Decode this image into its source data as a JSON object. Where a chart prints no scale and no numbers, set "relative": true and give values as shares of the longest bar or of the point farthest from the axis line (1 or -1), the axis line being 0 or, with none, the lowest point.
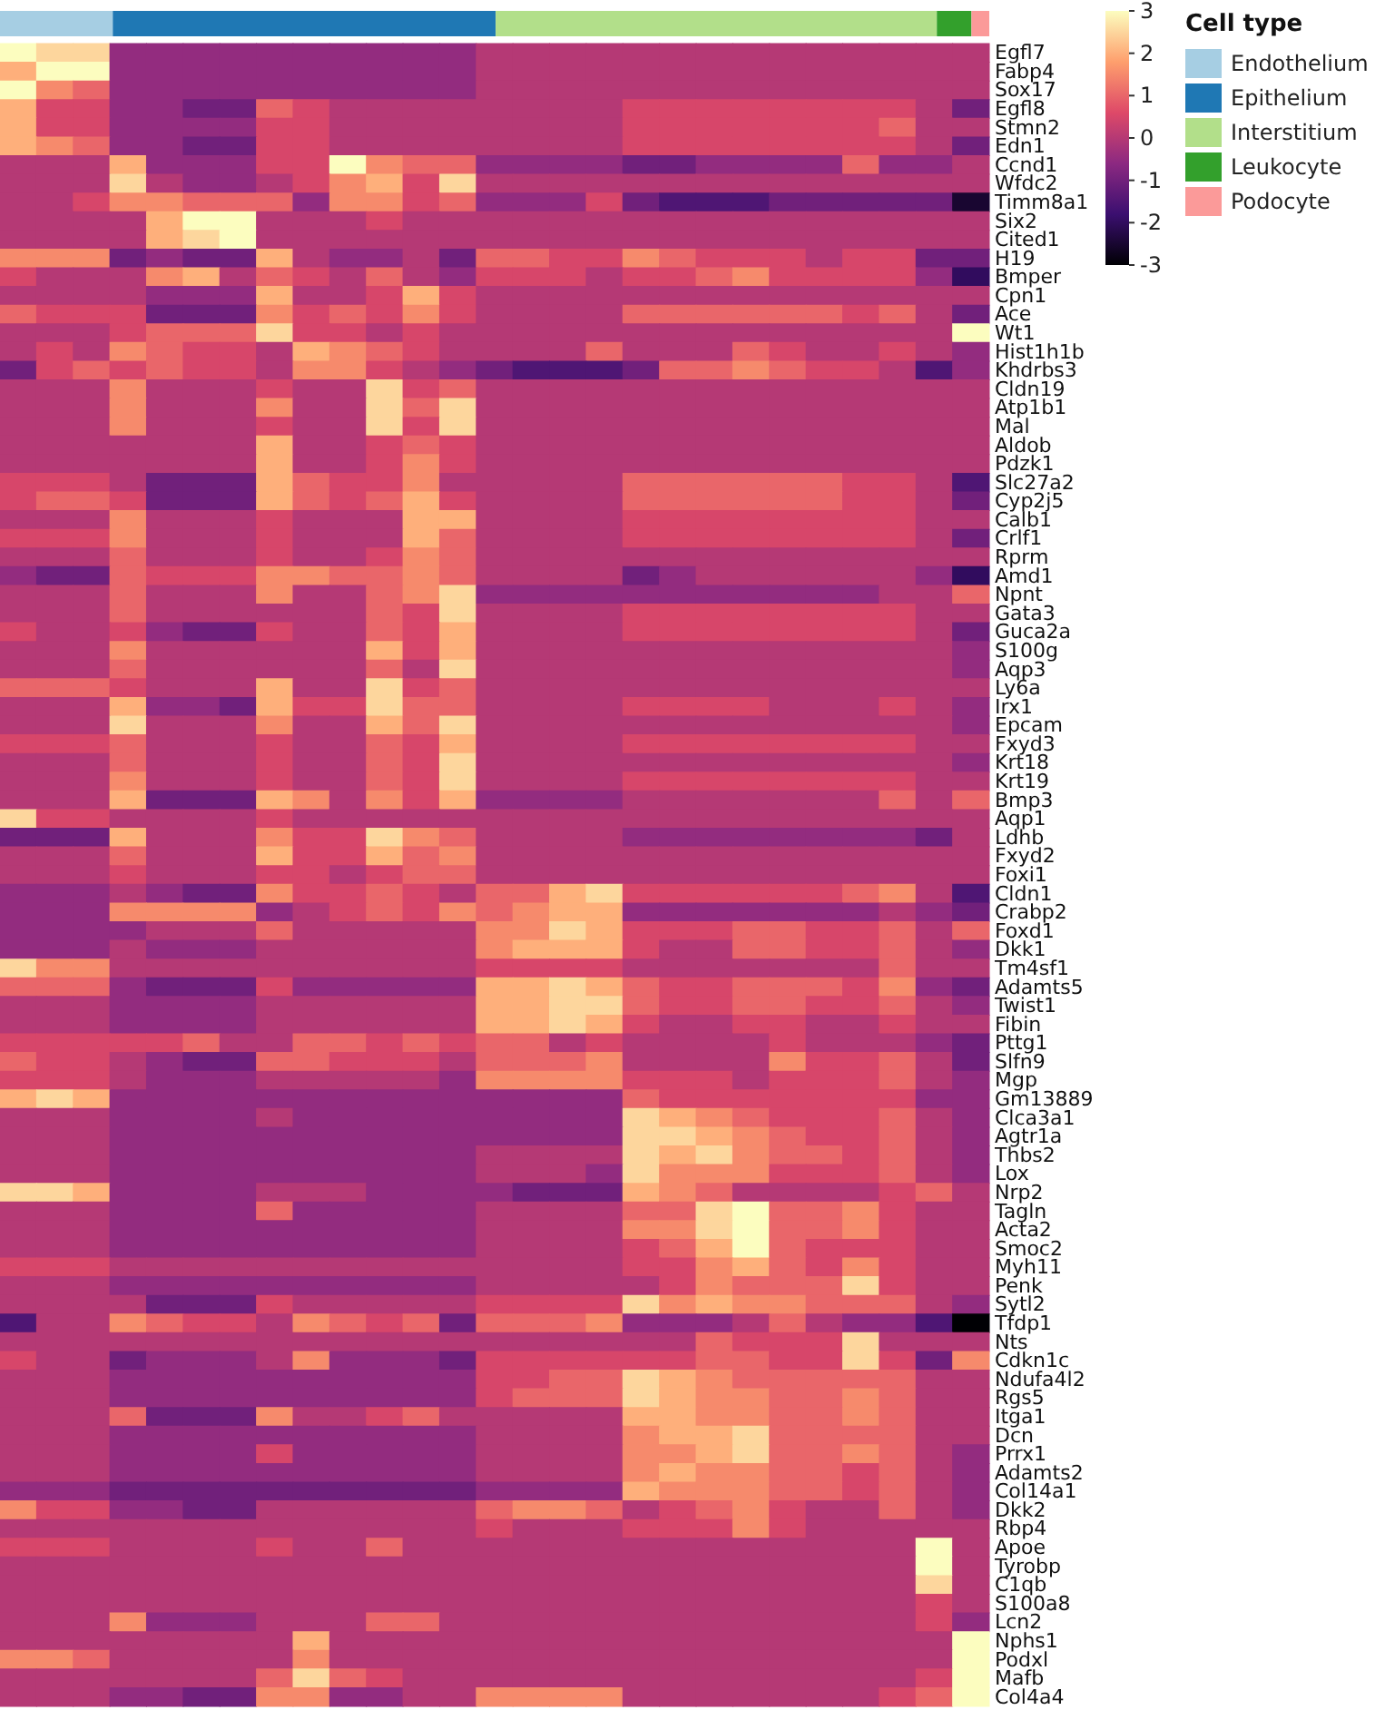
{
  "chart_data": [
    {
      "type": "bar",
      "orientation": "horizontal",
      "stacked": true,
      "relative": true,
      "legend": "bottom right",
      "legend_title": "Cell type",
      "categories": [
        null
      ],
      "series": [
        {
          "name": "Endothelium",
          "color": "#a6cee3",
          "values": [
            0.114
          ]
        },
        {
          "name": "Epithelium",
          "color": "#1f78b4",
          "values": [
            0.387
          ]
        },
        {
          "name": "Interstitium",
          "color": "#b2df8a",
          "values": [
            0.446
          ]
        },
        {
          "name": "Leukocyte",
          "color": "#33a02c",
          "values": [
            0.035
          ]
        },
        {
          "name": "Podocyte",
          "color": "#fb9a99",
          "values": [
            0.018
          ]
        }
      ]
    },
    {
      "type": "heatmap",
      "tick_labels": "y",
      "clim": [
        -3,
        3
      ],
      "cticks": [
        -3,
        -2,
        -1,
        0,
        1,
        2,
        3
      ],
      "categories": [
        null,
        null,
        null,
        null,
        null,
        null,
        null,
        null,
        null,
        null,
        null,
        null,
        null,
        null,
        null,
        null,
        null,
        null,
        null,
        null,
        null,
        null,
        null,
        null,
        null,
        null,
        null
      ],
      "y_categories": [
        "Egfl7",
        "Fabp4",
        "Sox17",
        "Egfl8",
        "Stmn2",
        "Edn1",
        "Ccnd1",
        "Wfdc2",
        "Timm8a1",
        "Six2",
        "Cited1",
        "H19",
        "Bmper",
        "Cpn1",
        "Ace",
        "Wt1",
        "Hist1h1b",
        "Khdrbs3",
        "Cldn19",
        "Atp1b1",
        "Mal",
        "Aldob",
        "Pdzk1",
        "Slc27a2",
        "Cyp2j5",
        "Calb1",
        "Crlf1",
        "Rprm",
        "Amd1",
        "Npnt",
        "Gata3",
        "Guca2a",
        "S100g",
        "Aqp3",
        "Ly6a",
        "Irx1",
        "Epcam",
        "Fxyd3",
        "Krt18",
        "Krt19",
        "Bmp3",
        "Aqp1",
        "Ldhb",
        "Fxyd2",
        "Foxi1",
        "Cldn1",
        "Crabp2",
        "Foxd1",
        "Dkk1",
        "Tm4sf1",
        "Adamts5",
        "Twist1",
        "Fibin",
        "Pttg1",
        "Slfn9",
        "Mgp",
        "Gm13889",
        "Clca3a1",
        "Agtr1a",
        "Thbs2",
        "Lox",
        "Nrp2",
        "Tagln",
        "Acta2",
        "Smoc2",
        "Myh11",
        "Penk",
        "Sytl2",
        "Tfdp1",
        "Nts",
        "Cdkn1c",
        "Ndufa4l2",
        "Rgs5",
        "Itga1",
        "Dcn",
        "Prrx1",
        "Adamts2",
        "Col14a1",
        "Dkk2",
        "Rbp4",
        "Apoe",
        "Tyrobp",
        "C1qb",
        "S100a8",
        "Lcn2",
        "Nphs1",
        "Podxl",
        "Mafb",
        "Col4a4"
      ],
      "cells": [
        [
          3,
          2.5,
          2.5,
          -0.5,
          -0.5,
          -0.5,
          -0.5,
          -0.5,
          -0.5,
          -0.5,
          -0.5,
          -0.5,
          -0.5,
          0,
          0,
          0,
          0,
          0,
          0,
          0,
          0,
          0,
          0,
          0,
          0,
          0,
          0
        ],
        [
          2,
          3,
          3,
          -0.5,
          -0.5,
          -0.5,
          -0.5,
          -0.5,
          -0.5,
          -0.5,
          -0.5,
          -0.5,
          -0.5,
          0,
          0,
          0,
          0,
          0,
          0,
          0,
          0,
          0,
          0,
          0,
          0,
          0,
          0
        ],
        [
          3,
          1.5,
          1,
          -0.5,
          -0.5,
          -0.5,
          -0.5,
          -0.5,
          -0.5,
          -0.5,
          -0.5,
          -0.5,
          -0.5,
          0,
          0,
          0,
          0,
          0,
          0,
          0,
          0,
          0,
          0,
          0,
          0,
          0,
          0
        ],
        [
          2,
          0.5,
          0.5,
          -0.5,
          -0.5,
          -1,
          -1,
          1,
          0.5,
          0,
          0,
          0,
          0,
          0,
          0,
          0,
          0,
          0.5,
          0.5,
          0.5,
          0.5,
          0.5,
          0.5,
          0.5,
          0.5,
          0,
          -1
        ],
        [
          2,
          0.5,
          0.5,
          -0.5,
          -0.5,
          -0.5,
          -0.5,
          0.5,
          0.5,
          0,
          0,
          0,
          0,
          0,
          0,
          0,
          0,
          0.5,
          0.5,
          0.5,
          0.5,
          0.5,
          0.5,
          0.5,
          1,
          0,
          0
        ],
        [
          2,
          1.5,
          1,
          -0.5,
          -0.5,
          -1,
          -1,
          0.5,
          0.5,
          0,
          0,
          0,
          0,
          0,
          0,
          0,
          0,
          0.5,
          0.5,
          0.5,
          0.5,
          0.5,
          0.5,
          0.5,
          0.5,
          0,
          -1
        ],
        [
          0,
          0,
          0,
          2,
          -0.5,
          -0.5,
          -0.5,
          0.5,
          0.5,
          3,
          1.5,
          1,
          1,
          -0.5,
          -0.5,
          -0.5,
          -0.5,
          -1,
          -1,
          -0.5,
          -0.5,
          -0.5,
          -0.5,
          1,
          -0.5,
          -0.5,
          0
        ],
        [
          0,
          0,
          0,
          2.5,
          0,
          -0.5,
          -0.5,
          0,
          0.5,
          1.5,
          2,
          0.5,
          2.5,
          0,
          0,
          0,
          0,
          0,
          0,
          0,
          0,
          0,
          0,
          0,
          0,
          0,
          0
        ],
        [
          0,
          0,
          0.5,
          1.5,
          1.5,
          1,
          1,
          1,
          -0.5,
          1.5,
          1.5,
          0.5,
          1,
          -0.5,
          -0.5,
          -0.5,
          0.5,
          -1,
          -1.5,
          -1.5,
          -1.5,
          -1,
          -1,
          -1,
          -1,
          -1,
          -2.5
        ],
        [
          0,
          0,
          0,
          0,
          2,
          3,
          3,
          0,
          0,
          0,
          0.5,
          0,
          0,
          0,
          0,
          0,
          0,
          0,
          0,
          0,
          0,
          0,
          0,
          0,
          0,
          0,
          0
        ],
        [
          0,
          0,
          0,
          0,
          2,
          2.5,
          3,
          0,
          0,
          0,
          0,
          0,
          0,
          0,
          0,
          0,
          0,
          0,
          0,
          0,
          0,
          0,
          0,
          0,
          0,
          0,
          0
        ],
        [
          1.5,
          1.5,
          1.5,
          -1,
          -0.5,
          -1,
          -1,
          2,
          0,
          -0.5,
          -0.5,
          0,
          -1,
          1,
          1,
          0.5,
          0.5,
          1.5,
          1,
          0.5,
          0.5,
          0.5,
          0,
          0.5,
          0.5,
          -1,
          -1
        ],
        [
          0.5,
          0,
          0,
          0,
          1.5,
          2,
          0,
          1,
          0.5,
          0,
          1,
          0,
          -0.5,
          0.5,
          0.5,
          0.5,
          0,
          0.5,
          0.5,
          1,
          1.5,
          0.5,
          0.5,
          0.5,
          0.5,
          -0.5,
          -2
        ],
        [
          0,
          0,
          0,
          0,
          -0.5,
          -0.5,
          -0.5,
          2,
          0,
          0,
          0.5,
          2,
          0.5,
          0,
          0,
          0,
          0,
          0,
          0,
          0,
          0,
          0,
          0,
          0,
          0,
          0,
          0
        ],
        [
          1,
          0.5,
          0.5,
          0.5,
          -1,
          -1,
          -1,
          1.5,
          0.5,
          1,
          0.5,
          1.5,
          0.5,
          0,
          0,
          0,
          0,
          1,
          1,
          1,
          1,
          1,
          1,
          0.5,
          1,
          0,
          -1
        ],
        [
          0,
          0,
          0,
          0.5,
          1,
          1,
          1,
          2.5,
          0.5,
          0.5,
          0,
          0.5,
          0,
          0,
          0,
          0,
          0,
          0,
          0,
          0,
          0,
          0,
          0,
          0,
          0,
          0,
          3
        ],
        [
          0,
          0.5,
          0,
          1.5,
          1,
          0.5,
          0.5,
          0,
          2,
          1.5,
          1,
          0.5,
          0,
          0,
          0,
          0,
          1,
          0,
          0,
          0,
          1,
          0.5,
          0,
          0,
          0.5,
          0,
          -0.5
        ],
        [
          -1,
          0.5,
          1,
          0.5,
          1,
          0.5,
          0.5,
          0,
          1.5,
          1.5,
          0.5,
          0,
          -0.5,
          -1,
          -1.5,
          -1.5,
          -1.5,
          -1,
          1,
          1,
          1.5,
          1,
          0.5,
          0.5,
          0,
          -1.5,
          -0.5
        ],
        [
          0,
          0,
          0,
          1.5,
          0,
          0,
          0,
          0.5,
          0,
          0,
          2.5,
          0.5,
          1,
          0,
          0,
          0,
          0,
          0,
          0,
          0,
          0,
          0,
          0,
          0,
          0,
          0,
          0
        ],
        [
          0,
          0,
          0,
          1.5,
          0,
          0,
          0,
          1.5,
          0,
          0,
          2.5,
          1,
          2.5,
          0,
          0,
          0,
          0,
          0,
          0,
          0,
          0,
          0,
          0,
          0,
          0,
          0,
          0
        ],
        [
          0,
          0,
          0,
          1.5,
          0,
          0,
          0,
          0.5,
          0,
          0,
          2.5,
          0.5,
          2.5,
          0,
          0,
          0,
          0,
          0,
          0,
          0,
          0,
          0,
          0,
          0,
          0,
          0,
          0
        ],
        [
          0,
          0,
          0,
          0,
          0,
          0,
          0,
          2,
          0,
          0,
          0.5,
          1,
          0.5,
          0,
          0,
          0,
          0,
          0,
          0,
          0,
          0,
          0,
          0,
          0,
          0,
          0,
          0
        ],
        [
          0,
          0,
          0,
          0,
          0,
          0,
          0,
          2,
          0,
          0,
          0.5,
          1.5,
          0.5,
          0,
          0,
          0,
          0,
          0,
          0,
          0,
          0,
          0,
          0,
          0,
          0,
          0,
          0
        ],
        [
          0.5,
          0.5,
          0.5,
          0,
          -1,
          -1,
          -1,
          2,
          1,
          0.5,
          0.5,
          1.5,
          0,
          0,
          0,
          0,
          0,
          1,
          1,
          1,
          1,
          1,
          1,
          0.5,
          0.5,
          0,
          -1.5
        ],
        [
          0.5,
          1,
          1,
          0.5,
          -1,
          -1,
          -1,
          2,
          1,
          0.5,
          1,
          2,
          0.5,
          0,
          0,
          0,
          0,
          1,
          1,
          1,
          1,
          1,
          1,
          0.5,
          0.5,
          0,
          -1
        ],
        [
          0,
          0,
          0,
          1.5,
          0,
          0,
          0,
          0.5,
          0,
          0,
          0,
          2,
          2,
          0,
          0,
          0,
          0,
          0.5,
          0.5,
          0.5,
          0.5,
          0.5,
          0.5,
          0.5,
          0.5,
          0,
          0
        ],
        [
          0.5,
          0.5,
          0.5,
          1.5,
          0,
          0,
          0,
          0.5,
          0,
          0,
          0,
          2,
          1,
          0,
          0,
          0,
          0,
          0.5,
          0.5,
          0.5,
          0.5,
          0.5,
          0.5,
          0.5,
          0.5,
          0,
          -1
        ],
        [
          0,
          0,
          0,
          1,
          0,
          0,
          0,
          0.5,
          0,
          0,
          0.5,
          1.5,
          1,
          0,
          0,
          0,
          0,
          0,
          0,
          0,
          0,
          0,
          0,
          0,
          0,
          0,
          0
        ],
        [
          -0.5,
          -1,
          -1,
          1,
          0.5,
          0.5,
          0.5,
          1.5,
          1.5,
          1,
          1,
          1.5,
          1,
          0,
          0,
          0,
          0,
          -1,
          -0.5,
          0,
          0,
          0,
          0,
          0,
          0,
          -0.5,
          -2
        ],
        [
          0,
          0,
          0,
          1,
          0,
          0,
          0,
          1.5,
          0,
          0,
          1,
          1.5,
          2.5,
          -0.5,
          -0.5,
          -0.5,
          -0.5,
          -0.5,
          -0.5,
          -0.5,
          -0.5,
          -0.5,
          -0.5,
          -0.5,
          0,
          0,
          1
        ],
        [
          0,
          0,
          0,
          1,
          0,
          0,
          0,
          0,
          0,
          0,
          1,
          0.5,
          2.5,
          0,
          0,
          0,
          0,
          0.5,
          0.5,
          0.5,
          0.5,
          0.5,
          0.5,
          0.5,
          0.5,
          0,
          0
        ],
        [
          0.5,
          0,
          0,
          0.5,
          -0.5,
          -1,
          -1,
          0.5,
          0,
          0,
          1,
          0.5,
          2,
          0,
          0,
          0,
          0,
          0.5,
          0.5,
          0.5,
          0.5,
          0.5,
          0.5,
          0.5,
          0.5,
          0,
          -1
        ],
        [
          0,
          0,
          0,
          1.5,
          0,
          0,
          0,
          0,
          0,
          0,
          2,
          0.5,
          2,
          0,
          0,
          0,
          0,
          0,
          0,
          0,
          0,
          0,
          0,
          0,
          0,
          0,
          -0.5
        ],
        [
          0,
          0,
          0,
          1,
          0,
          0,
          0,
          0,
          0,
          0,
          1,
          0,
          2.5,
          0,
          0,
          0,
          0,
          0,
          0,
          0,
          0,
          0,
          0,
          0,
          0,
          0,
          -0.5
        ],
        [
          1,
          1,
          1,
          0.5,
          0,
          0,
          0,
          2,
          0,
          0,
          2.5,
          0.5,
          1,
          0,
          0,
          0,
          0,
          0,
          0,
          0,
          0,
          0,
          0,
          0,
          0,
          0,
          0
        ],
        [
          0,
          0,
          0,
          2,
          -0.5,
          -0.5,
          -1,
          2,
          0.5,
          0.5,
          2.5,
          1,
          1,
          0,
          0,
          0,
          0,
          0.5,
          0.5,
          0.5,
          0.5,
          0,
          0,
          0,
          0.5,
          0,
          -0.5
        ],
        [
          0,
          0,
          0,
          2.5,
          0,
          0,
          0,
          1.5,
          0,
          0,
          2,
          1,
          2.5,
          0,
          0,
          0,
          0,
          0,
          0,
          0,
          0,
          0,
          0,
          0,
          0,
          0,
          -0.5
        ],
        [
          0.5,
          0.5,
          0.5,
          1,
          0,
          0,
          0,
          0.5,
          0,
          0,
          1,
          0.5,
          2,
          0,
          0,
          0,
          0,
          0.5,
          0.5,
          0.5,
          0.5,
          0.5,
          0.5,
          0.5,
          0.5,
          0,
          0
        ],
        [
          0,
          0,
          0,
          1,
          0,
          0,
          0,
          0.5,
          0,
          0,
          1,
          0.5,
          2.5,
          0,
          0,
          0,
          0,
          0,
          0,
          0,
          0,
          0,
          0,
          0,
          0,
          0,
          -0.5
        ],
        [
          0,
          0,
          0,
          1.5,
          0,
          0,
          0,
          0.5,
          0,
          0,
          1,
          0.5,
          2.5,
          0,
          0,
          0,
          0,
          0.5,
          0.5,
          0.5,
          0.5,
          0.5,
          0.5,
          0.5,
          0.5,
          0,
          0
        ],
        [
          0,
          0,
          0,
          2,
          -1,
          -1,
          -1,
          2,
          1.5,
          0,
          1.5,
          0.5,
          2,
          -0.5,
          -0.5,
          -0.5,
          -0.5,
          0,
          0,
          0,
          0,
          0,
          0,
          0,
          1,
          0,
          1
        ],
        [
          2.5,
          0.5,
          0.5,
          0,
          0,
          0,
          0,
          0.5,
          0,
          0,
          0,
          0,
          0,
          0,
          0,
          0,
          0,
          0,
          0,
          0,
          0,
          0,
          0,
          0,
          0,
          0,
          0
        ],
        [
          -1,
          -1,
          -1,
          2,
          0,
          0,
          0,
          1.5,
          0.5,
          0.5,
          2.5,
          1.5,
          1,
          0,
          0,
          0,
          0,
          -0.5,
          -0.5,
          -0.5,
          -0.5,
          -0.5,
          -0.5,
          -0.5,
          -0.5,
          -1,
          0
        ],
        [
          0,
          0,
          0,
          1,
          0,
          0,
          0,
          2,
          0.5,
          0.5,
          2,
          1,
          1.5,
          0,
          0,
          0,
          0,
          0,
          0,
          0,
          0,
          0,
          0,
          0,
          0,
          0,
          0
        ],
        [
          0,
          0,
          0,
          0.5,
          0,
          0,
          0,
          0.5,
          0.5,
          0,
          0.5,
          1,
          1,
          0,
          0,
          0,
          0,
          0,
          0,
          0,
          0,
          0,
          0,
          0,
          0,
          0,
          0
        ],
        [
          -0.5,
          -0.5,
          -0.5,
          0,
          -0.5,
          -1,
          -1,
          1.5,
          0.5,
          0.5,
          1,
          0.5,
          0,
          1,
          1,
          2,
          2.5,
          0.5,
          0.5,
          0.5,
          0.5,
          0.5,
          0.5,
          1,
          1.5,
          0,
          -1.5
        ],
        [
          -0.5,
          -0.5,
          -0.5,
          1.5,
          1.5,
          1.5,
          1.5,
          -0.5,
          0,
          0.5,
          1,
          0.5,
          1.5,
          1,
          1.5,
          2,
          2,
          -0.5,
          -0.5,
          -0.5,
          -0.5,
          -0.5,
          -0.5,
          -0.5,
          0,
          -0.5,
          -1
        ],
        [
          -0.5,
          -0.5,
          -0.5,
          -0.5,
          0,
          0,
          0,
          1,
          0,
          0,
          0,
          0,
          0,
          1.5,
          1.5,
          2.5,
          2,
          0.5,
          0.5,
          0.5,
          1,
          1,
          0.5,
          0.5,
          1,
          0,
          1
        ],
        [
          -0.5,
          -0.5,
          -0.5,
          0,
          -0.5,
          -0.5,
          -0.5,
          0,
          0,
          0,
          0,
          0,
          0,
          1.5,
          2,
          2,
          2,
          0.5,
          0,
          0,
          1,
          1,
          0.5,
          0.5,
          1,
          0,
          -0.5
        ],
        [
          2.5,
          1.5,
          1.5,
          0,
          0,
          0,
          0,
          0,
          0,
          0,
          0,
          0,
          0,
          0.5,
          0.5,
          0.5,
          0.5,
          0,
          0,
          0,
          0,
          0,
          0,
          0,
          1,
          0,
          0
        ],
        [
          1,
          1,
          1,
          -0.5,
          -1,
          -1,
          -1,
          0.5,
          -0.5,
          -0.5,
          -0.5,
          -0.5,
          -0.5,
          2,
          2,
          2.5,
          2,
          1,
          0.5,
          0.5,
          1,
          1,
          1,
          0.5,
          1.5,
          -0.5,
          -1
        ],
        [
          0,
          0,
          0,
          -0.5,
          -0.5,
          -0.5,
          -0.5,
          0,
          0,
          0,
          0,
          0,
          0,
          2,
          2,
          2.5,
          2.5,
          1,
          0.5,
          0.5,
          1,
          1,
          0.5,
          0.5,
          1,
          0,
          -0.5
        ],
        [
          0,
          0,
          0,
          -0.5,
          -0.5,
          -0.5,
          -0.5,
          0,
          0,
          0,
          0,
          0,
          0,
          2,
          2,
          2.5,
          2,
          0.5,
          0,
          0,
          0.5,
          0.5,
          0,
          0,
          0.5,
          0,
          0
        ],
        [
          0.5,
          0.5,
          0.5,
          0.5,
          0.5,
          1,
          0,
          0,
          1,
          1,
          0.5,
          1,
          0.5,
          1,
          1,
          0,
          0.5,
          0,
          0,
          0,
          0,
          0.5,
          0,
          0,
          0,
          -0.5,
          -1
        ],
        [
          1,
          0.5,
          0.5,
          0,
          -0.5,
          -1,
          -1,
          1,
          1,
          0.5,
          0.5,
          0.5,
          0,
          1,
          1,
          1,
          1.5,
          0,
          0,
          0,
          0,
          1.5,
          0.5,
          0.5,
          1,
          0,
          -1
        ],
        [
          0.5,
          0.5,
          0.5,
          0,
          -0.5,
          -0.5,
          -0.5,
          0,
          0,
          0,
          0,
          0,
          -0.5,
          1.5,
          1.5,
          1.5,
          1.5,
          0.5,
          0.5,
          0.5,
          0,
          0.5,
          0.5,
          0.5,
          1,
          0,
          -0.5
        ],
        [
          2,
          2.5,
          2,
          -0.5,
          -0.5,
          -0.5,
          -0.5,
          -0.5,
          -0.5,
          -0.5,
          -0.5,
          -0.5,
          -0.5,
          -0.5,
          -0.5,
          -0.5,
          -0.5,
          1,
          0.5,
          0.5,
          0.5,
          0.5,
          0.5,
          0.5,
          0.5,
          -0.5,
          -0.5
        ],
        [
          0,
          0,
          0,
          -0.5,
          -0.5,
          -0.5,
          -0.5,
          0,
          -0.5,
          -0.5,
          -0.5,
          -0.5,
          -0.5,
          -0.5,
          -0.5,
          -0.5,
          -0.5,
          2.5,
          2,
          1.5,
          1,
          0.5,
          0.5,
          0.5,
          1,
          0,
          -0.5
        ],
        [
          0,
          0,
          0,
          -0.5,
          -0.5,
          -0.5,
          -0.5,
          -0.5,
          -0.5,
          -0.5,
          -0.5,
          -0.5,
          -0.5,
          -0.5,
          -0.5,
          -0.5,
          -0.5,
          2.5,
          2.5,
          2,
          1.5,
          1,
          0.5,
          0.5,
          1,
          0,
          -0.5
        ],
        [
          0,
          0,
          0,
          -0.5,
          -0.5,
          -0.5,
          -0.5,
          -0.5,
          -0.5,
          -0.5,
          -0.5,
          -0.5,
          -0.5,
          0,
          0,
          0,
          0,
          2.5,
          2,
          2.5,
          1.5,
          1,
          1,
          0.5,
          1,
          0,
          -0.5
        ],
        [
          0,
          0,
          0,
          -0.5,
          -0.5,
          -0.5,
          -0.5,
          -0.5,
          -0.5,
          -0.5,
          -0.5,
          -0.5,
          -0.5,
          0,
          0,
          0,
          -0.5,
          2.5,
          1.5,
          1.5,
          1.5,
          0.5,
          0.5,
          0.5,
          1,
          0,
          -0.5
        ],
        [
          2.5,
          2.5,
          2,
          -0.5,
          -0.5,
          -0.5,
          -0.5,
          0,
          0,
          0,
          -0.5,
          -0.5,
          -0.5,
          -0.5,
          -1,
          -1,
          -1,
          2,
          1.5,
          1,
          0,
          0,
          0,
          0,
          0.5,
          1,
          0
        ],
        [
          0,
          0,
          0,
          -0.5,
          -0.5,
          -0.5,
          -0.5,
          1,
          -0.5,
          -0.5,
          -0.5,
          -0.5,
          -0.5,
          0,
          0,
          0,
          0,
          1,
          1,
          2.5,
          3,
          1,
          1,
          1.5,
          0.5,
          0,
          0
        ],
        [
          0,
          0,
          0,
          -0.5,
          -0.5,
          -0.5,
          -0.5,
          -0.5,
          -0.5,
          -0.5,
          -0.5,
          -0.5,
          -0.5,
          0,
          0,
          0,
          0,
          1.5,
          1.5,
          2.5,
          3,
          1,
          1,
          1.5,
          0.5,
          0,
          0
        ],
        [
          0,
          0,
          0,
          -0.5,
          -0.5,
          -0.5,
          -0.5,
          -0.5,
          -0.5,
          -0.5,
          -0.5,
          -0.5,
          -0.5,
          0,
          0,
          0,
          0,
          0.5,
          1,
          2,
          3,
          1,
          0.5,
          0.5,
          0.5,
          0,
          0
        ],
        [
          0.5,
          0.5,
          0.5,
          0,
          0,
          0,
          0,
          0,
          0,
          0,
          0,
          0,
          0,
          0,
          0,
          0,
          0,
          0.5,
          0.5,
          1.5,
          2,
          1,
          0.5,
          1.5,
          0.5,
          0,
          0
        ],
        [
          0,
          0,
          0,
          -0.5,
          -0.5,
          -0.5,
          -0.5,
          -0.5,
          -0.5,
          -0.5,
          -0.5,
          -0.5,
          -0.5,
          0,
          0,
          0,
          0,
          0,
          0.5,
          1.5,
          1,
          1,
          1,
          2.5,
          0.5,
          0,
          0
        ],
        [
          0,
          0,
          0,
          0,
          -1,
          -1,
          -1,
          0.5,
          0,
          0,
          0,
          0,
          0,
          0.5,
          0.5,
          0.5,
          0.5,
          2.5,
          1.5,
          2,
          1.5,
          1.5,
          1,
          1,
          1,
          0,
          -0.5
        ],
        [
          -1.5,
          0,
          0,
          1.5,
          1,
          0.5,
          0.5,
          0,
          1.5,
          1,
          0.5,
          1,
          -1,
          1,
          1,
          1,
          1.5,
          -0.5,
          -0.5,
          -0.5,
          0,
          1,
          0,
          -0.5,
          -0.5,
          -1.5,
          -3
        ],
        [
          0,
          0,
          0,
          0,
          0,
          0,
          0,
          0,
          0,
          0,
          0,
          0,
          0,
          0,
          0,
          0,
          0,
          0,
          0,
          1,
          0.5,
          0.5,
          0.5,
          2.5,
          0,
          0,
          0
        ],
        [
          0.5,
          0,
          0,
          -1,
          -0.5,
          -0.5,
          -0.5,
          0,
          1.5,
          -0.5,
          -0.5,
          -0.5,
          -1,
          0.5,
          0.5,
          0.5,
          0.5,
          0.5,
          0.5,
          1,
          1,
          0.5,
          0.5,
          2.5,
          0.5,
          -1,
          1.5
        ],
        [
          0,
          0,
          0,
          -0.5,
          -0.5,
          -0.5,
          -0.5,
          -0.5,
          -0.5,
          -0.5,
          -0.5,
          -0.5,
          -0.5,
          0.5,
          0.5,
          1,
          1,
          2.5,
          2,
          1.5,
          1,
          1,
          1,
          1,
          1,
          0,
          0
        ],
        [
          0,
          0,
          0,
          -0.5,
          -0.5,
          -0.5,
          -0.5,
          -0.5,
          -0.5,
          -0.5,
          -0.5,
          -0.5,
          -0.5,
          0.5,
          1,
          1,
          1,
          2.5,
          2,
          1.5,
          1.5,
          1,
          1,
          1.5,
          1,
          0,
          0
        ],
        [
          0,
          0,
          0,
          1,
          -1,
          -1,
          -1,
          1.5,
          0,
          0,
          0.5,
          1,
          0,
          0,
          0,
          0,
          0,
          2,
          2,
          1.5,
          1.5,
          1,
          1,
          1.5,
          1,
          0,
          0
        ],
        [
          0,
          0,
          0,
          -0.5,
          -0.5,
          -0.5,
          -0.5,
          -0.5,
          -0.5,
          -0.5,
          -0.5,
          -0.5,
          -0.5,
          0,
          0,
          0,
          0,
          1.5,
          2,
          2,
          2.5,
          1,
          1,
          1,
          1,
          0,
          0
        ],
        [
          0,
          0,
          0,
          -0.5,
          -0.5,
          -0.5,
          -0.5,
          0.5,
          -0.5,
          -0.5,
          -0.5,
          -0.5,
          -0.5,
          0,
          0,
          0,
          0,
          1.5,
          1.5,
          2,
          2.5,
          1,
          1,
          1.5,
          1,
          0,
          -0.5
        ],
        [
          0,
          0,
          0,
          -0.5,
          -0.5,
          -0.5,
          -0.5,
          -0.5,
          -0.5,
          -0.5,
          -0.5,
          -0.5,
          -0.5,
          0,
          0,
          0,
          0,
          1.5,
          2,
          1.5,
          1.5,
          1,
          1,
          0.5,
          1,
          0,
          -0.5
        ],
        [
          -0.5,
          -0.5,
          -0.5,
          -1,
          -1,
          -1,
          -1,
          -1,
          -1,
          -1,
          -1,
          -1,
          -1,
          -0.5,
          -0.5,
          -0.5,
          -0.5,
          2,
          1.5,
          1.5,
          1.5,
          1,
          1,
          0.5,
          1,
          0,
          -0.5
        ],
        [
          1.5,
          0.5,
          0.5,
          -0.5,
          -0.5,
          -1,
          -1,
          0,
          0,
          0,
          0,
          0,
          0,
          1,
          1.5,
          1.5,
          1,
          0,
          0.5,
          1,
          1.5,
          0.5,
          0,
          0,
          1,
          0,
          -0.5
        ],
        [
          0,
          0,
          0,
          0,
          0,
          0,
          0,
          0,
          0,
          0,
          0,
          0,
          0,
          0.5,
          0,
          0,
          0,
          0.5,
          0.5,
          0.5,
          1.5,
          0.5,
          0,
          0,
          0,
          0,
          0
        ],
        [
          0.5,
          0.5,
          0.5,
          0,
          0,
          0,
          0,
          0.5,
          0,
          0,
          1,
          0,
          0,
          0,
          0,
          0,
          0,
          0,
          0,
          0,
          0,
          0,
          0,
          0,
          0,
          3,
          0
        ],
        [
          0,
          0,
          0,
          0,
          0,
          0,
          0,
          0,
          0,
          0,
          0,
          0,
          0,
          0,
          0,
          0,
          0,
          0,
          0,
          0,
          0,
          0,
          0,
          0,
          0,
          3,
          0
        ],
        [
          0,
          0,
          0,
          0,
          0,
          0,
          0,
          0,
          0,
          0,
          0,
          0,
          0,
          0,
          0,
          0,
          0,
          0,
          0,
          0,
          0,
          0,
          0,
          0,
          0,
          2.5,
          0
        ],
        [
          0,
          0,
          0,
          0,
          0,
          0,
          0,
          0,
          0,
          0,
          0,
          0,
          0,
          0,
          0,
          0,
          0,
          0,
          0,
          0,
          0,
          0,
          0,
          0,
          0,
          0.5,
          0
        ],
        [
          0,
          0,
          0,
          1.5,
          -0.5,
          -0.5,
          -0.5,
          0,
          0,
          0,
          1,
          1,
          0,
          0,
          0,
          0,
          0,
          0,
          0,
          0,
          0,
          0,
          0,
          0,
          0,
          0.5,
          -0.5
        ],
        [
          0,
          0,
          0,
          0,
          0,
          0,
          0,
          0,
          2,
          0,
          0,
          0,
          0,
          0,
          0,
          0,
          0,
          0,
          0,
          0,
          0,
          0,
          0,
          0,
          0,
          0,
          3
        ],
        [
          1.5,
          1.5,
          1,
          0,
          0,
          0,
          0,
          0,
          1.5,
          0,
          0,
          0,
          0,
          0,
          0,
          0,
          0,
          0,
          0,
          0,
          0,
          0,
          0,
          0,
          0,
          0,
          3
        ],
        [
          0,
          0,
          0,
          0,
          0,
          0,
          0,
          1,
          2.5,
          1,
          0.5,
          0,
          0,
          0,
          0,
          0,
          0,
          0,
          0,
          0,
          0,
          0,
          0,
          0,
          0,
          0.5,
          3
        ],
        [
          0,
          0,
          0,
          -0.5,
          -0.5,
          -1,
          -1,
          1.5,
          1.5,
          -0.5,
          -0.5,
          0,
          0,
          1.5,
          1.5,
          1.5,
          1.5,
          0,
          0,
          0,
          0,
          0,
          0,
          0,
          0.5,
          1,
          3
        ]
      ]
    }
  ]
}
